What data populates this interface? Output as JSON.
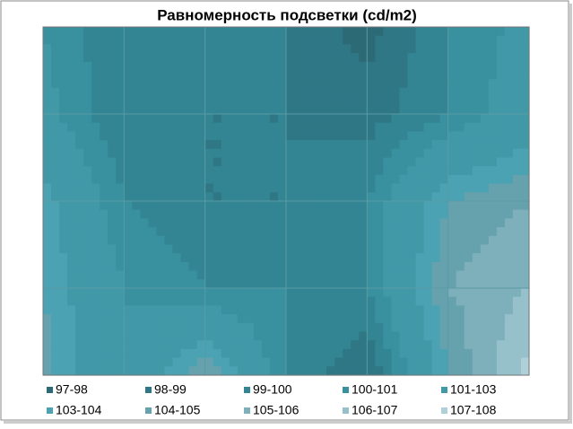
{
  "chart_data": {
    "type": "contour",
    "title": "Равномерность подсветки (cd/m2)",
    "levels": [
      97,
      98,
      99,
      100,
      101,
      103,
      104,
      105,
      106,
      107,
      108
    ],
    "series": [
      {
        "name": "97-98",
        "color": "#2c6a76"
      },
      {
        "name": "98-99",
        "color": "#2f7785"
      },
      {
        "name": "99-100",
        "color": "#338593"
      },
      {
        "name": "100-101",
        "color": "#39909e"
      },
      {
        "name": "101-103",
        "color": "#4199a8"
      },
      {
        "name": "103-104",
        "color": "#4aa2b2"
      },
      {
        "name": "104-105",
        "color": "#66a2ad"
      },
      {
        "name": "105-106",
        "color": "#7eb0bb"
      },
      {
        "name": "106-107",
        "color": "#96c0ca"
      },
      {
        "name": "107-108",
        "color": "#afd0d9"
      }
    ],
    "z": [
      [
        101,
        99,
        100,
        99,
        97.5,
        100,
        101.5
      ],
      [
        101.5,
        99,
        99,
        99,
        98.5,
        100,
        102
      ],
      [
        103.5,
        100,
        99,
        99,
        100,
        104,
        105
      ],
      [
        104,
        101,
        100,
        100,
        100,
        105,
        106
      ],
      [
        104.5,
        101,
        105,
        100,
        98,
        104,
        107.5
      ]
    ],
    "grid": true
  }
}
